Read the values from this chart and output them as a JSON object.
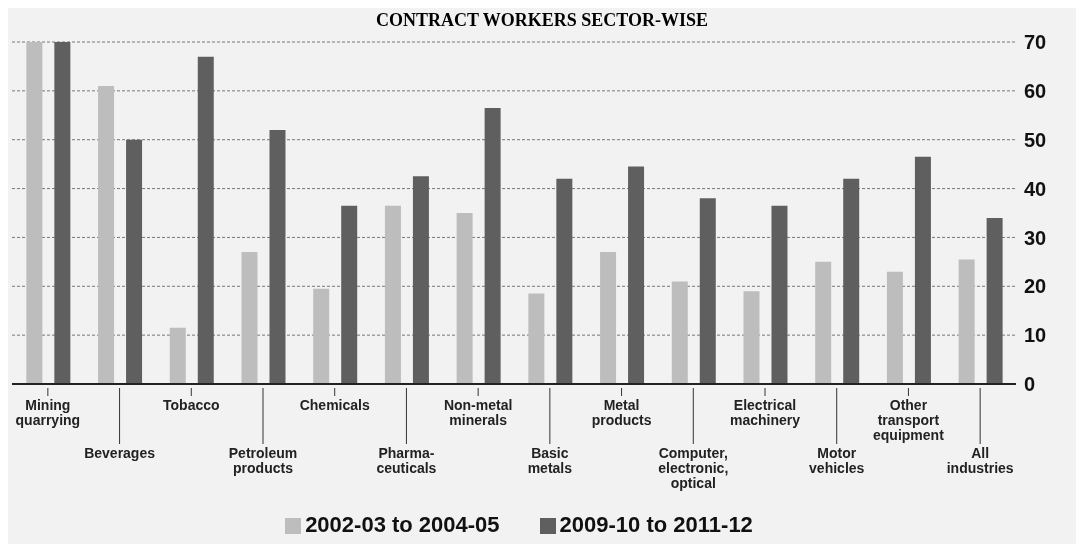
{
  "chart_data": {
    "type": "bar",
    "title": "CONTRACT WORKERS SECTOR-WISE",
    "categories": [
      "Mining\nquarrying",
      "Beverages",
      "Tobacco",
      "Petroleum\nproducts",
      "Chemicals",
      "Pharma-\nceuticals",
      "Non-metal\nminerals",
      "Basic\nmetals",
      "Metal\nproducts",
      "Computer,\nelectronic,\noptical",
      "Electrical\nmachinery",
      "Motor\nvehicles",
      "Other\ntransport\nequipment",
      "All\nindustries"
    ],
    "series": [
      {
        "name": "2002-03 to 2004-05",
        "color": "#bdbdbd",
        "values": [
          70,
          61,
          11.5,
          27,
          19.5,
          36.5,
          35,
          18.5,
          27,
          21,
          19,
          25,
          23,
          25.5
        ]
      },
      {
        "name": "2009-10 to 2011-12",
        "color": "#5f5f5f",
        "values": [
          70,
          50,
          67,
          52,
          36.5,
          42.5,
          56.5,
          42,
          44.5,
          38,
          36.5,
          42,
          46.5,
          34
        ]
      }
    ],
    "ylim": [
      0,
      70
    ],
    "yticks": [
      0,
      10,
      20,
      30,
      40,
      50,
      60,
      70
    ],
    "grid": "y",
    "legend": "bottom"
  }
}
